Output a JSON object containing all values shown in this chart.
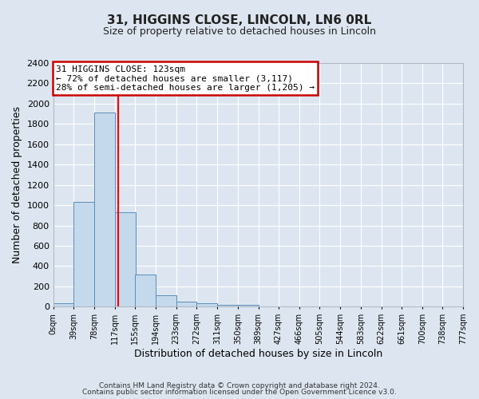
{
  "title": "31, HIGGINS CLOSE, LINCOLN, LN6 0RL",
  "subtitle": "Size of property relative to detached houses in Lincoln",
  "xlabel": "Distribution of detached houses by size in Lincoln",
  "ylabel": "Number of detached properties",
  "footnote1": "Contains HM Land Registry data © Crown copyright and database right 2024.",
  "footnote2": "Contains public sector information licensed under the Open Government Licence v3.0.",
  "bin_edges": [
    0,
    39,
    78,
    117,
    155,
    194,
    233,
    272,
    311,
    350,
    389,
    427,
    466,
    505,
    544,
    583,
    622,
    661,
    700,
    738,
    777
  ],
  "bin_labels": [
    "0sqm",
    "39sqm",
    "78sqm",
    "117sqm",
    "155sqm",
    "194sqm",
    "233sqm",
    "272sqm",
    "311sqm",
    "350sqm",
    "389sqm",
    "427sqm",
    "466sqm",
    "505sqm",
    "544sqm",
    "583sqm",
    "622sqm",
    "661sqm",
    "700sqm",
    "738sqm",
    "777sqm"
  ],
  "bar_heights": [
    30,
    1030,
    1910,
    930,
    320,
    110,
    50,
    30,
    20,
    20,
    0,
    0,
    0,
    0,
    0,
    0,
    0,
    0,
    0,
    0
  ],
  "bar_color": "#c5d9ec",
  "bar_edge_color": "#5b8db8",
  "red_line_x": 123,
  "ylim": [
    0,
    2400
  ],
  "yticks": [
    0,
    200,
    400,
    600,
    800,
    1000,
    1200,
    1400,
    1600,
    1800,
    2000,
    2200,
    2400
  ],
  "annotation_title": "31 HIGGINS CLOSE: 123sqm",
  "annotation_line1": "← 72% of detached houses are smaller (3,117)",
  "annotation_line2": "28% of semi-detached houses are larger (1,205) →",
  "annotation_box_color": "#ffffff",
  "annotation_box_edge": "#cc0000",
  "background_color": "#dde6f0",
  "plot_background": "#dde6f0",
  "grid_color": "#ffffff",
  "title_fontsize": 11,
  "subtitle_fontsize": 9
}
